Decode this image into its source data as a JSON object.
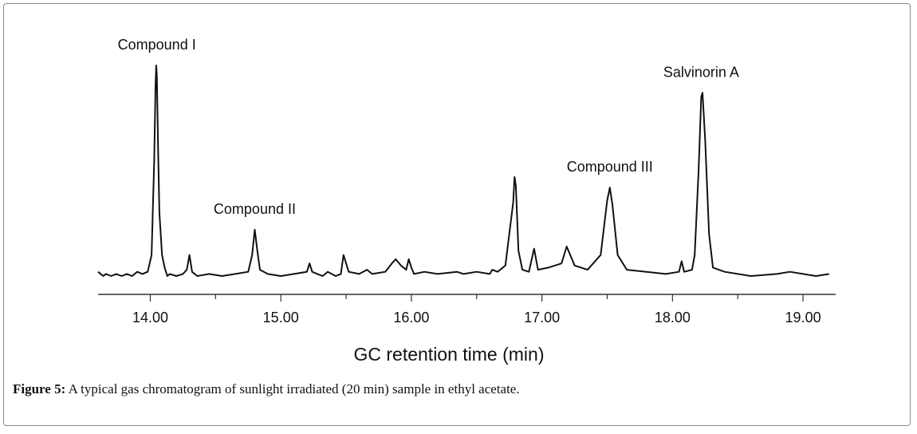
{
  "caption": {
    "label": "Figure 5:",
    "text": "A typical gas chromatogram of sunlight irradiated (20 min) sample in ethyl acetate."
  },
  "chart_data": {
    "type": "line",
    "title": "",
    "xlabel": "GC retention time (min)",
    "ylabel": "",
    "xlim": [
      13.6,
      19.25
    ],
    "ylim": [
      0,
      1
    ],
    "grid": false,
    "x_ticks": [
      "14.00",
      "15.00",
      "16.00",
      "17.00",
      "18.00",
      "19.00"
    ],
    "series": [
      {
        "x": [
          13.6,
          13.64,
          13.66,
          13.7,
          13.74,
          13.78,
          13.82,
          13.86,
          13.9,
          13.94,
          13.98,
          14.01,
          14.03,
          14.04,
          14.045,
          14.05,
          14.06,
          14.07,
          14.09,
          14.11,
          14.13,
          14.15,
          14.2,
          14.25,
          14.28,
          14.3,
          14.32,
          14.36,
          14.45,
          14.55,
          14.65,
          14.75,
          14.78,
          14.8,
          14.82,
          14.84,
          14.9,
          15.0,
          15.1,
          15.2,
          15.22,
          15.24,
          15.28,
          15.32,
          15.36,
          15.42,
          15.46,
          15.48,
          15.52,
          15.6,
          15.66,
          15.7,
          15.8,
          15.85,
          15.88,
          15.92,
          15.96,
          15.98,
          16.0,
          16.02,
          16.1,
          16.2,
          16.35,
          16.4,
          16.5,
          16.6,
          16.62,
          16.66,
          16.72,
          16.78,
          16.79,
          16.8,
          16.82,
          16.85,
          16.9,
          16.94,
          16.97,
          17.05,
          17.15,
          17.19,
          17.25,
          17.35,
          17.45,
          17.5,
          17.52,
          17.54,
          17.58,
          17.65,
          17.8,
          17.95,
          18.05,
          18.07,
          18.09,
          18.15,
          18.17,
          18.2,
          18.22,
          18.23,
          18.25,
          18.28,
          18.31,
          18.4,
          18.6,
          18.8,
          18.9,
          19.0,
          19.1,
          19.2
        ],
        "y": [
          0.02,
          0.0,
          0.01,
          0.0,
          0.01,
          0.0,
          0.01,
          0.0,
          0.02,
          0.01,
          0.02,
          0.1,
          0.55,
          0.9,
          1.0,
          0.95,
          0.6,
          0.3,
          0.1,
          0.04,
          0.0,
          0.01,
          0.0,
          0.01,
          0.03,
          0.1,
          0.02,
          0.0,
          0.01,
          0.0,
          0.01,
          0.02,
          0.1,
          0.22,
          0.12,
          0.03,
          0.01,
          0.0,
          0.01,
          0.02,
          0.06,
          0.02,
          0.01,
          0.0,
          0.02,
          0.0,
          0.01,
          0.1,
          0.02,
          0.01,
          0.03,
          0.01,
          0.02,
          0.06,
          0.08,
          0.05,
          0.03,
          0.08,
          0.04,
          0.01,
          0.02,
          0.01,
          0.02,
          0.01,
          0.02,
          0.01,
          0.03,
          0.02,
          0.05,
          0.35,
          0.47,
          0.43,
          0.12,
          0.03,
          0.02,
          0.13,
          0.03,
          0.04,
          0.06,
          0.14,
          0.05,
          0.03,
          0.1,
          0.36,
          0.42,
          0.34,
          0.1,
          0.03,
          0.02,
          0.01,
          0.02,
          0.07,
          0.02,
          0.03,
          0.1,
          0.5,
          0.85,
          0.87,
          0.65,
          0.2,
          0.04,
          0.02,
          0.0,
          0.01,
          0.02,
          0.01,
          0.0,
          0.01
        ]
      }
    ],
    "annotations": [
      {
        "text": "Compound I",
        "x": 14.05,
        "y": 1.0
      },
      {
        "text": "Compound II",
        "x": 14.8,
        "y": 0.22
      },
      {
        "text": "Compound III",
        "x": 17.52,
        "y": 0.42
      },
      {
        "text": "Salvinorin A",
        "x": 18.22,
        "y": 0.87
      }
    ]
  }
}
